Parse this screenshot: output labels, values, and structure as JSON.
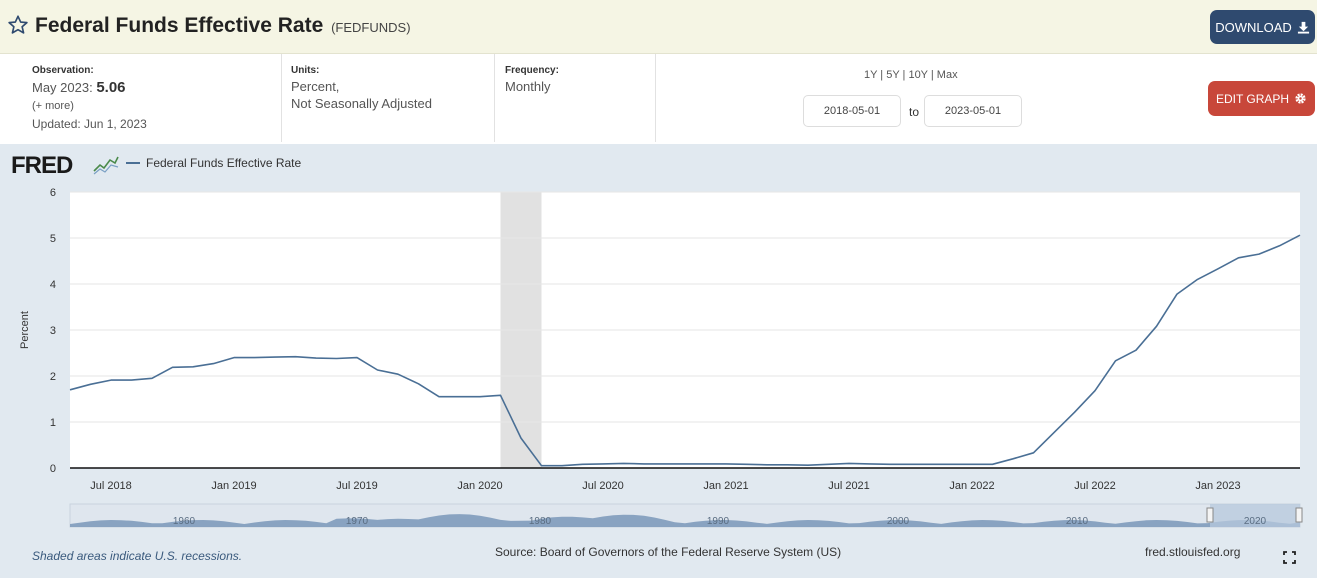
{
  "header": {
    "title": "Federal Funds Effective Rate",
    "series_id": "(FEDFUNDS)",
    "download_label": "DOWNLOAD"
  },
  "info": {
    "observation_label": "Observation:",
    "observation_period": "May 2023:",
    "observation_value": "5.06",
    "more": "(+ more)",
    "updated": "Updated: Jun 1, 2023",
    "units_label": "Units:",
    "units_line1": "Percent,",
    "units_line2": "Not Seasonally Adjusted",
    "frequency_label": "Frequency:",
    "frequency_value": "Monthly",
    "range_links": "1Y | 5Y | 10Y | Max",
    "date_from": "2018-05-01",
    "date_to_label": "to",
    "date_to": "2023-05-01",
    "edit_label": "EDIT GRAPH"
  },
  "legend": {
    "logo_text": "FRED",
    "series_name": "Federal Funds Effective Rate"
  },
  "footer": {
    "recession_note": "Shaded areas indicate U.S. recessions.",
    "source": "Source: Board of Governors of the Federal Reserve System (US)",
    "site": "fred.stlouisfed.org"
  },
  "colors": {
    "line": "#4a6f95",
    "recession": "#e1e1e1",
    "download_button": "#2f4a6f",
    "edit_button": "#c8473a"
  },
  "chart_data": {
    "type": "line",
    "ylabel": "Percent",
    "ylim": [
      0,
      6
    ],
    "yticks": [
      0,
      1,
      2,
      3,
      4,
      5,
      6
    ],
    "xlim": [
      "2018-05",
      "2023-05"
    ],
    "xtick_labels": [
      "Jul 2018",
      "Jan 2019",
      "Jul 2019",
      "Jan 2020",
      "Jul 2020",
      "Jan 2021",
      "Jul 2021",
      "Jan 2022",
      "Jul 2022",
      "Jan 2023"
    ],
    "grid": true,
    "recession_shading": [
      [
        "2020-02",
        "2020-04"
      ]
    ],
    "series": [
      {
        "name": "Federal Funds Effective Rate",
        "x": [
          "2018-05",
          "2018-06",
          "2018-07",
          "2018-08",
          "2018-09",
          "2018-10",
          "2018-11",
          "2018-12",
          "2019-01",
          "2019-02",
          "2019-03",
          "2019-04",
          "2019-05",
          "2019-06",
          "2019-07",
          "2019-08",
          "2019-09",
          "2019-10",
          "2019-11",
          "2019-12",
          "2020-01",
          "2020-02",
          "2020-03",
          "2020-04",
          "2020-05",
          "2020-06",
          "2020-07",
          "2020-08",
          "2020-09",
          "2020-10",
          "2020-11",
          "2020-12",
          "2021-01",
          "2021-02",
          "2021-03",
          "2021-04",
          "2021-05",
          "2021-06",
          "2021-07",
          "2021-08",
          "2021-09",
          "2021-10",
          "2021-11",
          "2021-12",
          "2022-01",
          "2022-02",
          "2022-03",
          "2022-04",
          "2022-05",
          "2022-06",
          "2022-07",
          "2022-08",
          "2022-09",
          "2022-10",
          "2022-11",
          "2022-12",
          "2023-01",
          "2023-02",
          "2023-03",
          "2023-04",
          "2023-05"
        ],
        "values": [
          1.7,
          1.82,
          1.91,
          1.91,
          1.95,
          2.19,
          2.2,
          2.27,
          2.4,
          2.4,
          2.41,
          2.42,
          2.39,
          2.38,
          2.4,
          2.13,
          2.04,
          1.83,
          1.55,
          1.55,
          1.55,
          1.58,
          0.65,
          0.05,
          0.05,
          0.08,
          0.09,
          0.1,
          0.09,
          0.09,
          0.09,
          0.09,
          0.09,
          0.08,
          0.07,
          0.07,
          0.06,
          0.08,
          0.1,
          0.09,
          0.08,
          0.08,
          0.08,
          0.08,
          0.08,
          0.08,
          0.2,
          0.33,
          0.77,
          1.21,
          1.68,
          2.33,
          2.56,
          3.08,
          3.78,
          4.1,
          4.33,
          4.57,
          4.65,
          4.83,
          5.06
        ]
      }
    ],
    "overview": {
      "axis_labels": [
        "1960",
        "1970",
        "1980",
        "1990",
        "2000",
        "2010",
        "2020"
      ]
    }
  }
}
